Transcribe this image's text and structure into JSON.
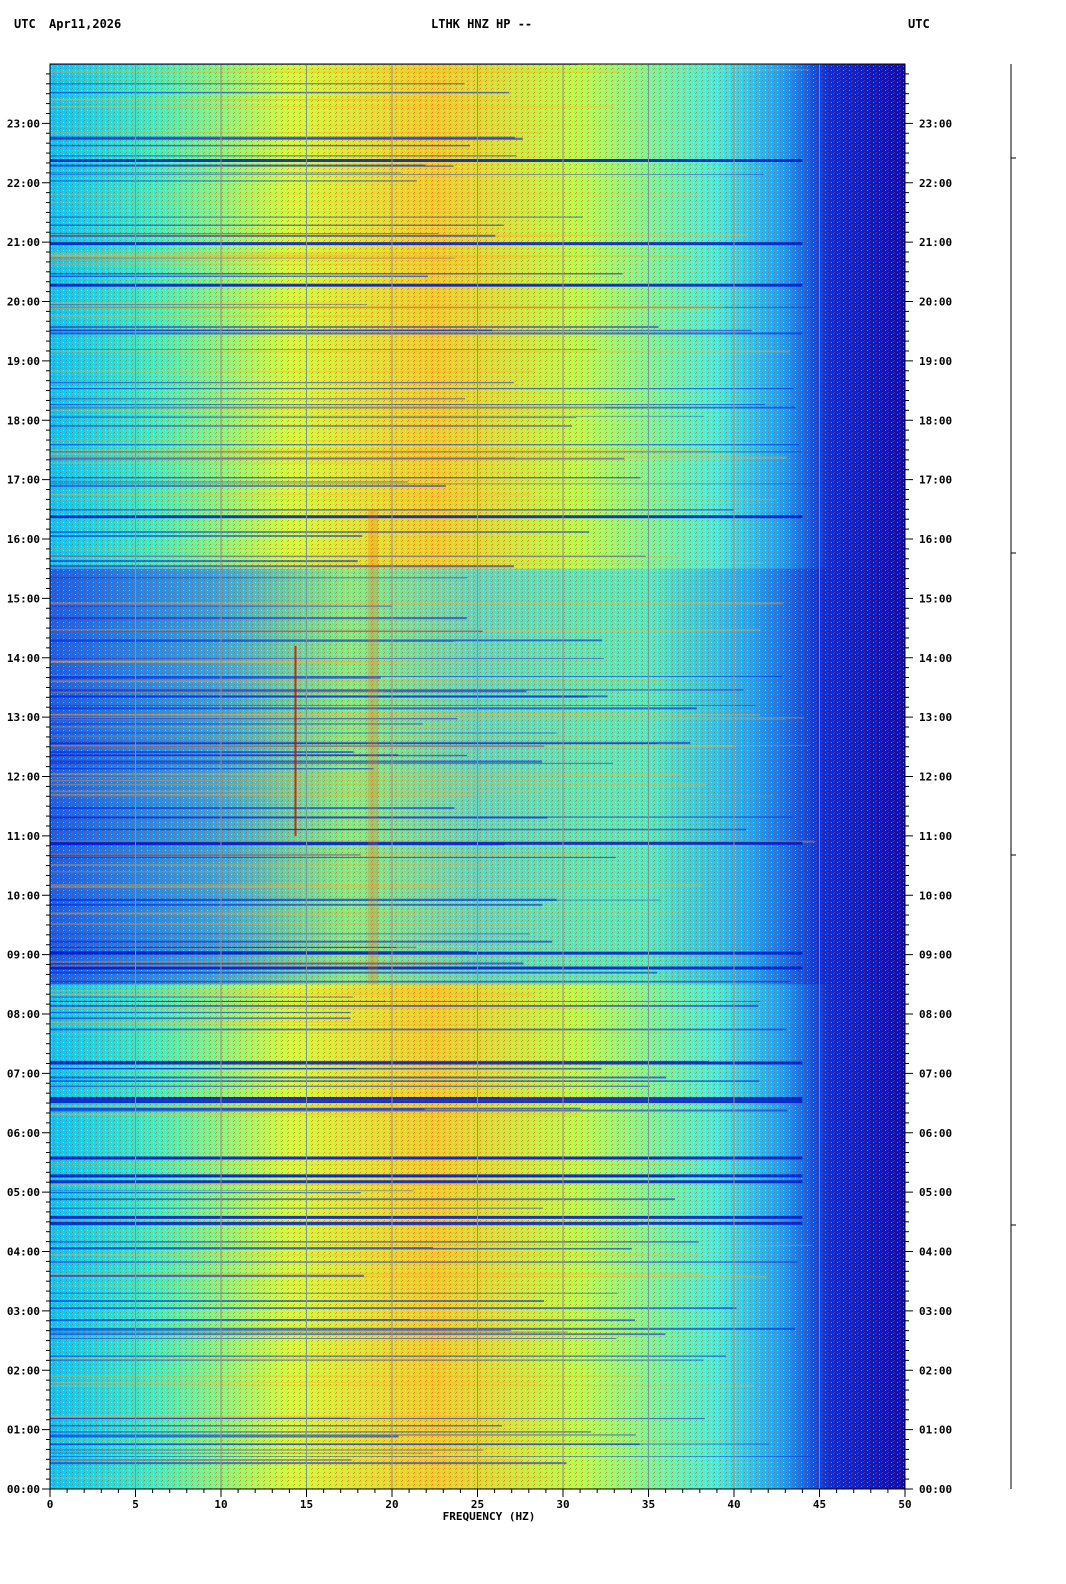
{
  "header": {
    "left_tz": "UTC",
    "date": "Apr11,2026",
    "station": "LTHK HNZ HP --",
    "right_tz": "UTC"
  },
  "chart_data": {
    "type": "heatmap",
    "xlabel": "FREQUENCY (HZ)",
    "xlim": [
      0,
      50
    ],
    "x_ticks": [
      "0",
      "5",
      "10",
      "15",
      "20",
      "25",
      "30",
      "35",
      "40",
      "45",
      "50"
    ],
    "y_ticks": [
      "00:00",
      "01:00",
      "02:00",
      "03:00",
      "04:00",
      "05:00",
      "06:00",
      "07:00",
      "08:00",
      "09:00",
      "10:00",
      "11:00",
      "12:00",
      "13:00",
      "14:00",
      "15:00",
      "16:00",
      "17:00",
      "18:00",
      "19:00",
      "20:00",
      "21:00",
      "22:00",
      "23:00"
    ],
    "ylim_hours": [
      0,
      24
    ],
    "grid": true,
    "colors": {
      "background_deep": "#0010c8",
      "low": "#1a3cff",
      "mid_low": "#00b4ff",
      "mid": "#40ffd0",
      "mid_high": "#ffff30",
      "high": "#ff8000",
      "peak": "#e00000"
    }
  }
}
